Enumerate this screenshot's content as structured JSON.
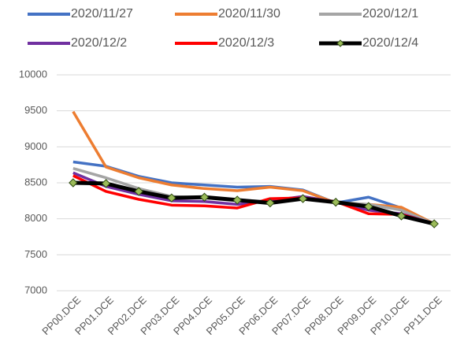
{
  "chart_data": {
    "type": "line",
    "categories": [
      "PP00.DCE",
      "PP01.DCE",
      "PP02.DCE",
      "PP03.DCE",
      "PP04.DCE",
      "PP05.DCE",
      "PP06.DCE",
      "PP07.DCE",
      "PP08.DCE",
      "PP09.DCE",
      "PP10.DCE",
      "PP11.DCE"
    ],
    "series": [
      {
        "name": "2020/11/27",
        "color": "#4472c4",
        "values": [
          8790,
          8730,
          8590,
          8500,
          8470,
          8440,
          8450,
          8400,
          8220,
          8300,
          8150,
          7930
        ]
      },
      {
        "name": "2020/11/30",
        "color": "#ed7d31",
        "values": [
          9490,
          8720,
          8570,
          8470,
          8420,
          8390,
          8440,
          8390,
          8220,
          8200,
          8160,
          7930
        ]
      },
      {
        "name": "2020/12/1",
        "color": "#a5a5a5",
        "values": [
          8700,
          8570,
          8420,
          8310,
          8290,
          8260,
          8240,
          8310,
          8230,
          8200,
          8120,
          7930
        ]
      },
      {
        "name": "2020/12/2",
        "color": "#7030a0",
        "values": [
          8640,
          8450,
          8340,
          8250,
          8240,
          8200,
          8250,
          8310,
          8230,
          8120,
          8070,
          7930
        ]
      },
      {
        "name": "2020/12/3",
        "color": "#ff0000",
        "values": [
          8600,
          8380,
          8270,
          8190,
          8180,
          8150,
          8280,
          8290,
          8240,
          8070,
          8060,
          7930
        ]
      },
      {
        "name": "2020/12/4",
        "color": "#000000",
        "marker": "diamond",
        "marker_color": "#9bbb59",
        "values": [
          8500,
          8490,
          8380,
          8290,
          8300,
          8260,
          8220,
          8280,
          8230,
          8170,
          8040,
          7930
        ]
      }
    ],
    "ylim": [
      7000,
      10000
    ],
    "yticks": [
      7000,
      7500,
      8000,
      8500,
      9000,
      9500,
      10000
    ],
    "grid": true
  }
}
